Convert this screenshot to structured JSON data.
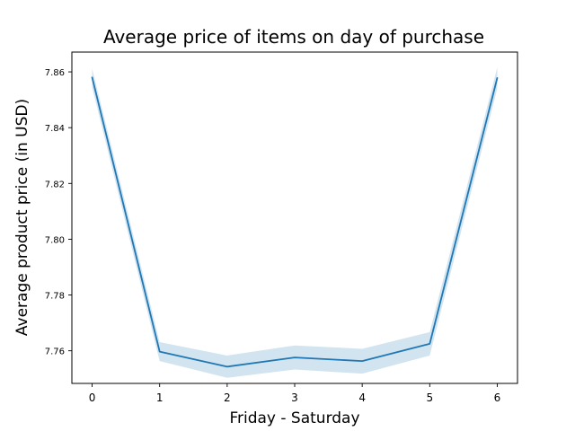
{
  "chart_data": {
    "type": "line",
    "title": "Average price of items on day of purchase",
    "xlabel": "Friday - Saturday",
    "ylabel": "Average product price (in USD)",
    "x": [
      0,
      1,
      2,
      3,
      4,
      5,
      6
    ],
    "series": [
      {
        "values": [
          7.858,
          7.7597,
          7.7543,
          7.7576,
          7.7563,
          7.7625,
          7.8578
        ],
        "ci_lower": [
          7.8545,
          7.7563,
          7.7503,
          7.7533,
          7.7518,
          7.7583,
          7.854
        ],
        "ci_upper": [
          7.8612,
          7.7631,
          7.7583,
          7.7619,
          7.7607,
          7.7667,
          7.8616
        ],
        "color": "#1f77b4",
        "band_color": "#1f77b4"
      }
    ],
    "xticks": [
      "0",
      "1",
      "2",
      "3",
      "4",
      "5",
      "6"
    ],
    "yticks": [
      "7.76",
      "7.78",
      "7.80",
      "7.82",
      "7.84",
      "7.86"
    ],
    "xlim": [
      -0.3,
      6.3
    ],
    "ylim": [
      7.7483,
      7.8671
    ],
    "grid": false,
    "legend": "none"
  }
}
